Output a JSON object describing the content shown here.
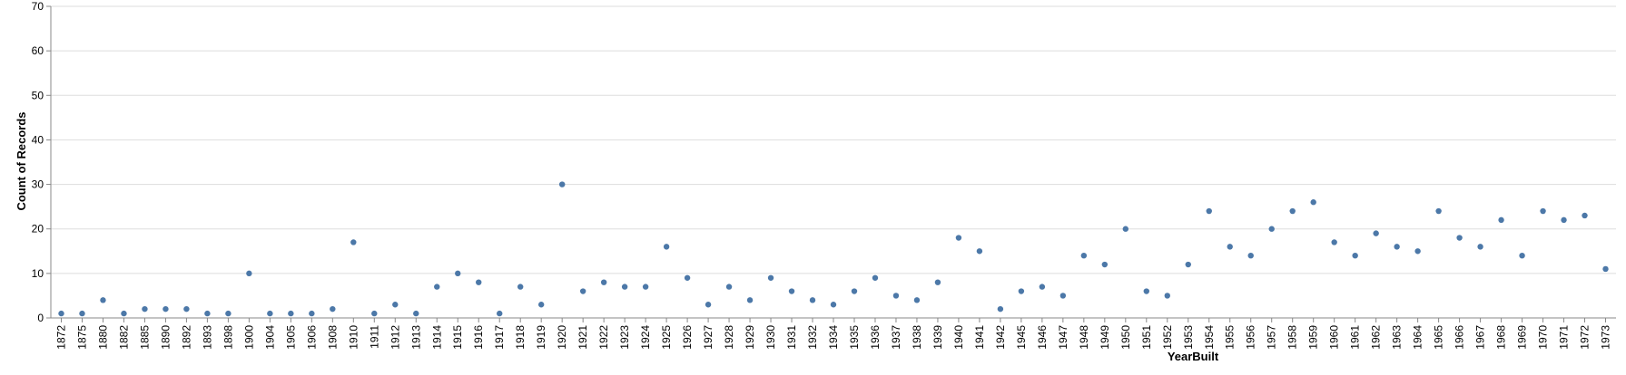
{
  "chart_data": {
    "type": "scatter",
    "title": "",
    "xlabel": "YearBuilt",
    "ylabel": "Count of Records",
    "ylim": [
      0,
      70
    ],
    "yticks": [
      0,
      10,
      20,
      30,
      40,
      50,
      60,
      70
    ],
    "grid": true,
    "point_color": "#4c78a8",
    "categories": [
      "1872",
      "1875",
      "1880",
      "1882",
      "1885",
      "1890",
      "1892",
      "1893",
      "1898",
      "1900",
      "1904",
      "1905",
      "1906",
      "1908",
      "1910",
      "1911",
      "1912",
      "1913",
      "1914",
      "1915",
      "1916",
      "1917",
      "1918",
      "1919",
      "1920",
      "1921",
      "1922",
      "1923",
      "1924",
      "1925",
      "1926",
      "1927",
      "1928",
      "1929",
      "1930",
      "1931",
      "1932",
      "1934",
      "1935",
      "1936",
      "1937",
      "1938",
      "1939",
      "1940",
      "1941",
      "1942",
      "1945",
      "1946",
      "1947",
      "1948",
      "1949",
      "1950",
      "1951",
      "1952",
      "1953",
      "1954",
      "1955",
      "1956",
      "1957",
      "1958",
      "1959",
      "1960",
      "1961",
      "1962",
      "1963",
      "1964",
      "1965",
      "1966",
      "1967",
      "1968",
      "1969",
      "1970",
      "1971",
      "1972",
      "1973"
    ],
    "values": [
      1,
      1,
      4,
      1,
      2,
      2,
      2,
      1,
      1,
      10,
      1,
      1,
      1,
      2,
      17,
      1,
      3,
      1,
      7,
      10,
      8,
      1,
      7,
      3,
      30,
      6,
      8,
      7,
      7,
      16,
      9,
      3,
      7,
      4,
      9,
      6,
      4,
      3,
      6,
      9,
      5,
      4,
      8,
      18,
      15,
      2,
      6,
      7,
      5,
      14,
      12,
      20,
      6,
      5,
      12,
      24,
      16,
      14,
      20,
      24,
      26,
      17,
      14,
      19,
      16,
      15,
      24,
      18,
      16,
      22,
      14,
      24,
      22,
      23,
      11
    ]
  }
}
